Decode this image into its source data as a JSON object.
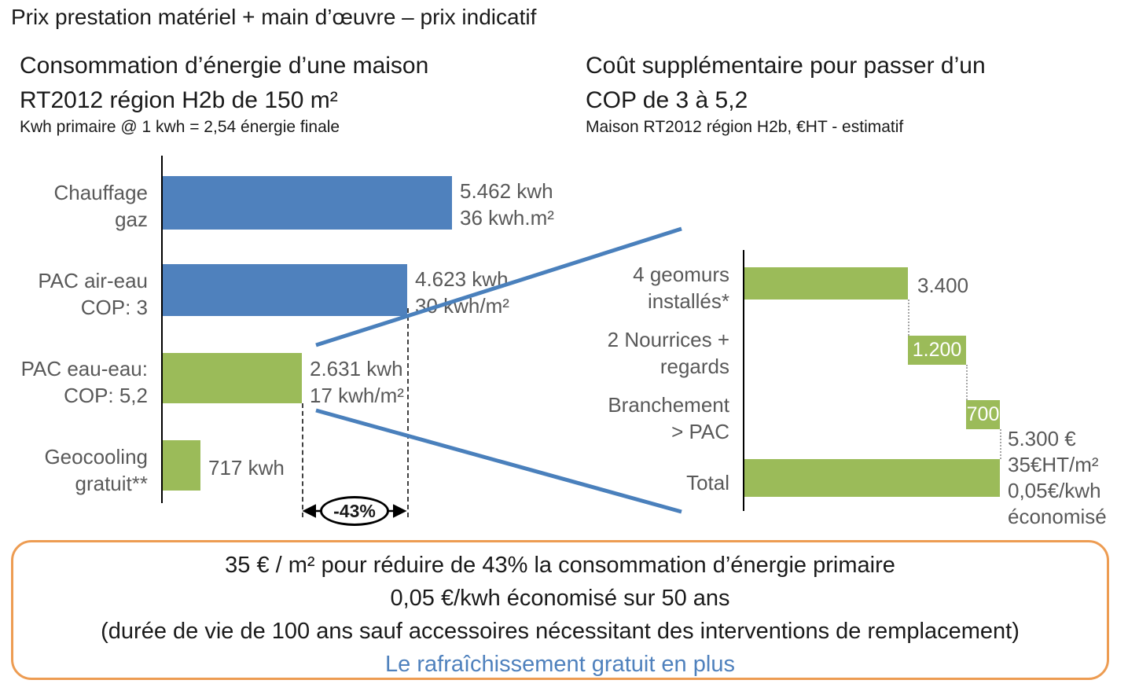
{
  "page": {
    "title": "Prix prestation matériel + main d’œuvre – prix indicatif"
  },
  "colors": {
    "blue": "#4f81bd",
    "green": "#9bbb59",
    "orange_border": "#ed9c52",
    "label_gray": "#595959"
  },
  "chart_data": [
    {
      "type": "bar",
      "orientation": "horizontal",
      "title": "Consommation d’énergie d’une maison\nRT2012 région H2b de 150 m²",
      "subtitle": "Kwh primaire @ 1 kwh = 2,54 énergie finale",
      "categories": [
        "Chauffage gaz",
        "PAC air-eau COP: 3",
        "PAC eau-eau: COP: 5,2",
        "Geocooling gratuit**"
      ],
      "categories_display": [
        "Chauffage\ngaz",
        "PAC air-eau\nCOP: 3",
        "PAC eau-eau:\nCOP: 5,2",
        "Geocooling\ngratuit**"
      ],
      "values": [
        5462,
        4623,
        2631,
        717
      ],
      "unit": "kwh",
      "value_labels": [
        "5.462 kwh\n36 kwh.m²",
        "4.623 kwh\n30 kwh/m²",
        "2.631 kwh\n17 kwh/m²",
        "717 kwh"
      ],
      "bar_colors": [
        "#4f81bd",
        "#4f81bd",
        "#9bbb59",
        "#9bbb59"
      ],
      "xlim": [
        0,
        5462
      ],
      "annotation": "-43%",
      "grid": false,
      "legend": false
    },
    {
      "type": "bar",
      "subtype": "waterfall",
      "orientation": "horizontal",
      "title": "Coût supplémentaire pour passer d’un\nCOP de 3 à 5,2",
      "subtitle": "Maison RT2012 région H2b, €HT - estimatif",
      "categories": [
        "4 geomurs installés*",
        "2 Nourrices + regards",
        "Branchement > PAC",
        "Total"
      ],
      "categories_display": [
        "4 geomurs\ninstallés*",
        "2 Nourrices +\nregards",
        "Branchement\n> PAC",
        "Total"
      ],
      "values": [
        3400,
        1200,
        700,
        5300
      ],
      "unit": "€HT",
      "value_labels": [
        "3.400",
        "1.200",
        "700",
        "5.300 €\n35€HT/m²\n0,05€/kwh\néconomisé"
      ],
      "bar_colors": [
        "#9bbb59",
        "#9bbb59",
        "#9bbb59",
        "#9bbb59"
      ],
      "xlim": [
        0,
        5300
      ],
      "grid": false,
      "legend": false
    }
  ],
  "footer": {
    "lines": [
      "35 € / m² pour réduire de 43% la consommation d’énergie primaire",
      "0,05 €/kwh économisé sur 50 ans",
      "(durée de vie de 100 ans sauf accessoires nécessitant des interventions de remplacement)",
      "Le rafraîchissement gratuit en plus"
    ],
    "highlight_color": "#4f81bd"
  }
}
